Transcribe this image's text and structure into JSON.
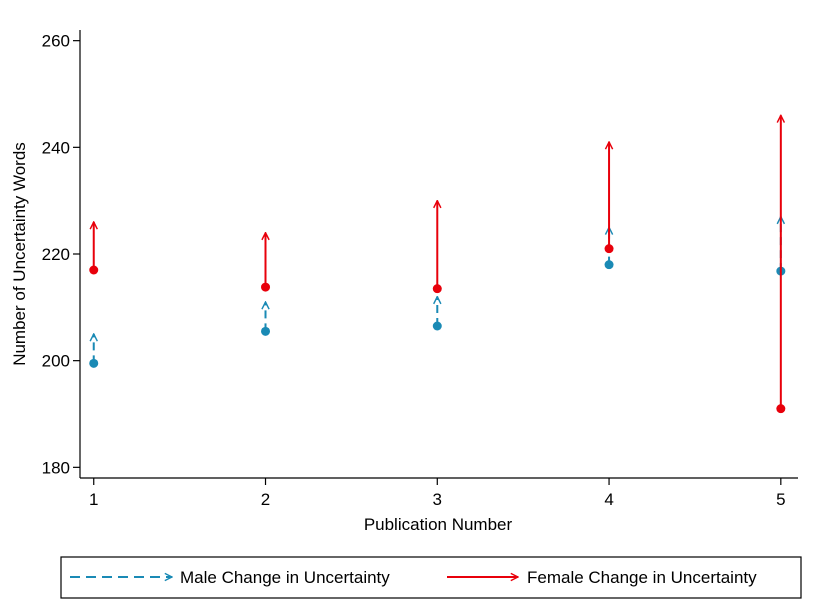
{
  "chart_data": {
    "type": "scatter",
    "title": "",
    "xlabel": "Publication Number",
    "ylabel": "Number of Uncertainty Words",
    "x": [
      1,
      2,
      3,
      4,
      5
    ],
    "xticks": [
      "1",
      "2",
      "3",
      "4",
      "5"
    ],
    "ylim": [
      178,
      262
    ],
    "yticks": [
      "180",
      "200",
      "220",
      "240",
      "260"
    ],
    "grid": false,
    "legend_position": "bottom",
    "series": [
      {
        "name": "Male Change in Uncertainty",
        "color": "#1a8ab5",
        "line_style": "dashed",
        "start": [
          199.5,
          205.5,
          206.5,
          218,
          216.8
        ],
        "end": [
          205,
          211,
          212,
          225,
          227
        ]
      },
      {
        "name": "Female Change in Uncertainty",
        "color": "#e8000b",
        "line_style": "solid",
        "start": [
          217,
          213.8,
          213.5,
          221,
          191
        ],
        "end": [
          226,
          224,
          230,
          241,
          246
        ]
      }
    ]
  }
}
